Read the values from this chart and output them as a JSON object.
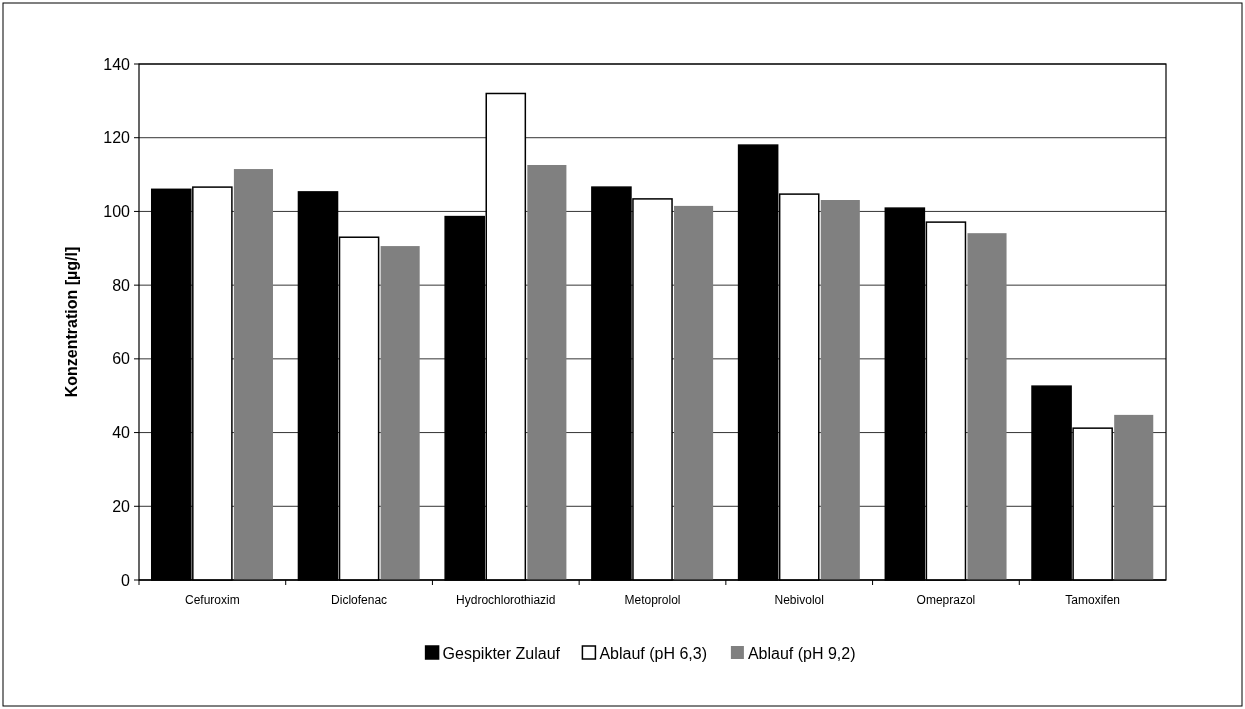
{
  "chart_data": {
    "type": "bar",
    "ylabel": "Konzentration [µg/l]",
    "categories": [
      "Cefuroxim",
      "Diclofenac",
      "Hydrochlorothiazid",
      "Metoprolol",
      "Nebivolol",
      "Omeprazol",
      "Tamoxifen"
    ],
    "series": [
      {
        "name": "Gespikter Zulauf",
        "color": "#000000",
        "values": [
          106,
          105.3,
          98.6,
          106.6,
          118,
          100.9,
          52.6
        ]
      },
      {
        "name": "Ablauf (pH 6,3)",
        "color": "#ffffff",
        "values": [
          106.6,
          93,
          132,
          103.4,
          104.7,
          97.1,
          41.2
        ]
      },
      {
        "name": "Ablauf (pH 9,2)",
        "color": "#808080",
        "values": [
          111.5,
          90.6,
          112.6,
          101.5,
          103.1,
          94.1,
          44.8
        ]
      }
    ],
    "ylim": [
      0,
      140
    ],
    "yticks": [
      0,
      20,
      40,
      60,
      80,
      100,
      120,
      140
    ],
    "grid": "y",
    "legend": "bottom"
  }
}
